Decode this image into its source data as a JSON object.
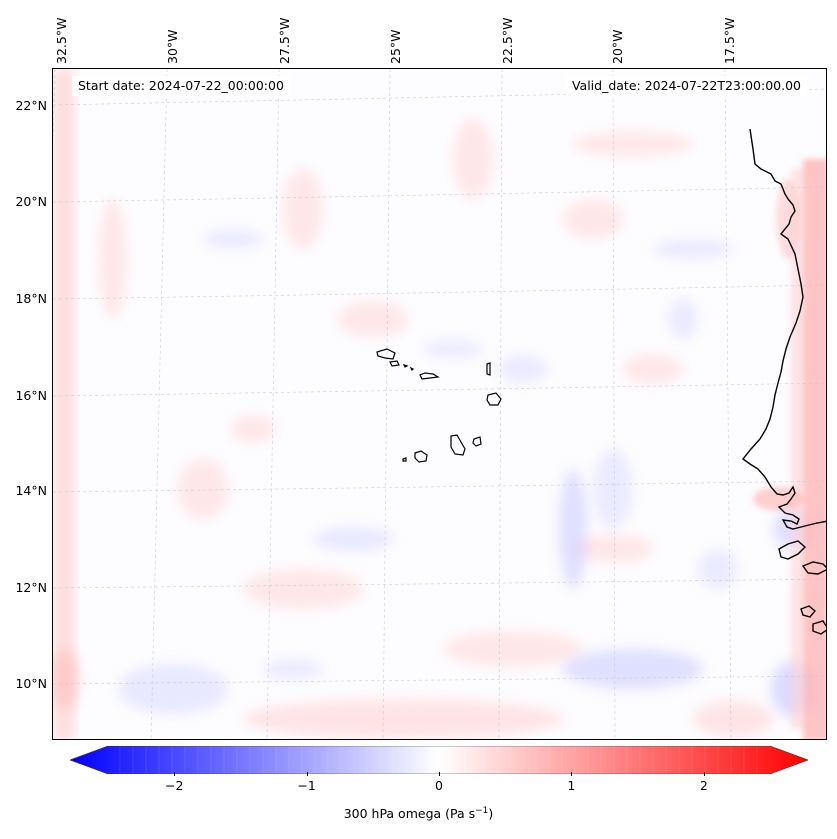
{
  "map": {
    "start_date": "Start date: 2024-07-22_00:00:00",
    "valid_date": "Valid_date: 2024-07-22T23:00:00.00",
    "lon_labels": [
      "32.5°W",
      "30°W",
      "27.5°W",
      "25°W",
      "22.5°W",
      "20°W",
      "17.5°W"
    ],
    "lat_labels": [
      "22°N",
      "20°N",
      "18°N",
      "16°N",
      "14°N",
      "12°N",
      "10°N"
    ],
    "lon_values": [
      -32.5,
      -30,
      -27.5,
      -25,
      -22.5,
      -20,
      -17.5
    ],
    "lat_values": [
      22,
      20,
      18,
      16,
      14,
      12,
      10
    ]
  },
  "colorbar": {
    "label_prefix": "300 hPa omega (Pa s",
    "label_sup": "−1",
    "label_suffix": ")",
    "tick_labels": [
      "−2",
      "−1",
      "0",
      "1",
      "2"
    ],
    "tick_values": [
      -2,
      -1,
      0,
      1,
      2
    ],
    "min": -2.75,
    "max": 2.75,
    "min_color": "#0000ff",
    "mid_color": "#ffffff",
    "max_color": "#ff0000"
  },
  "colors": {
    "coastline": "#000000",
    "gridline": "#c8c8c8",
    "positive_shade": "#ffd6d6",
    "negative_shade": "#d8d8ff"
  }
}
